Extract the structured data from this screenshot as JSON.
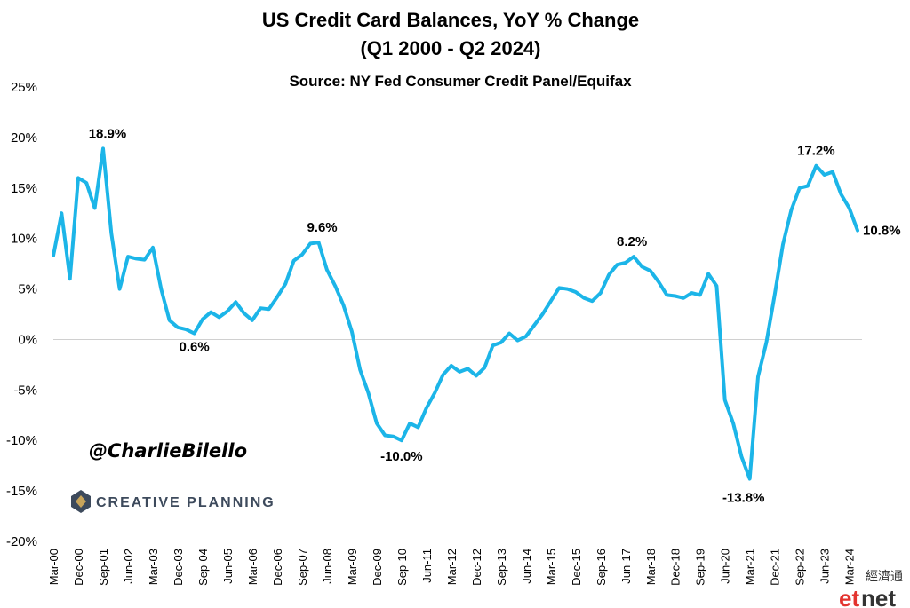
{
  "chart_data": {
    "type": "line",
    "title_line1": "US Credit Card Balances, YoY % Change",
    "title_line2": "(Q1 2000 - Q2 2024)",
    "subtitle": "Source: NY Fed Consumer Credit Panel/Equifax",
    "ylim": [
      -20,
      25
    ],
    "yticks": [
      -20,
      -15,
      -10,
      -5,
      0,
      5,
      10,
      15,
      20,
      25
    ],
    "ytick_labels": [
      "-20%",
      "-15%",
      "-10%",
      "-5%",
      "0%",
      "5%",
      "10%",
      "15%",
      "20%",
      "25%"
    ],
    "xtick_labels": [
      "Mar-00",
      "Dec-00",
      "Sep-01",
      "Jun-02",
      "Mar-03",
      "Dec-03",
      "Sep-04",
      "Jun-05",
      "Mar-06",
      "Dec-06",
      "Sep-07",
      "Jun-08",
      "Mar-09",
      "Dec-09",
      "Sep-10",
      "Jun-11",
      "Mar-12",
      "Dec-12",
      "Sep-13",
      "Jun-14",
      "Mar-15",
      "Dec-15",
      "Sep-16",
      "Jun-17",
      "Mar-18",
      "Dec-18",
      "Sep-19",
      "Jun-20",
      "Mar-21",
      "Dec-21",
      "Sep-22",
      "Jun-23",
      "Mar-24"
    ],
    "grid": false,
    "line_color": "#1cb5e8",
    "series": [
      {
        "values": [
          8.3,
          12.5,
          6.0,
          16.0,
          15.5,
          13.0,
          18.9,
          10.5,
          5.0,
          8.2,
          8.0,
          7.9,
          9.1,
          5.0,
          1.9,
          1.2,
          1.0,
          0.6,
          2.0,
          2.7,
          2.2,
          2.8,
          3.7,
          2.6,
          1.9,
          3.1,
          3.0,
          4.2,
          5.5,
          7.8,
          8.4,
          9.5,
          9.6,
          6.9,
          5.3,
          3.4,
          0.8,
          -3.0,
          -5.3,
          -8.3,
          -9.5,
          -9.6,
          -10.0,
          -8.3,
          -8.7,
          -6.8,
          -5.3,
          -3.5,
          -2.6,
          -3.2,
          -2.9,
          -3.6,
          -2.8,
          -0.6,
          -0.3,
          0.6,
          -0.1,
          0.3,
          1.4,
          2.5,
          3.8,
          5.1,
          5.0,
          4.7,
          4.1,
          3.8,
          4.6,
          6.4,
          7.4,
          7.6,
          8.2,
          7.2,
          6.8,
          5.7,
          4.4,
          4.3,
          4.1,
          4.6,
          4.4,
          6.5,
          5.3,
          -6.0,
          -8.3,
          -11.6,
          -13.8,
          -3.7,
          -0.3,
          4.4,
          9.4,
          12.8,
          15.0,
          15.2,
          17.2,
          16.3,
          16.6,
          14.4,
          13.0,
          10.8
        ]
      }
    ],
    "annotations": [
      "18.9%",
      "0.6%",
      "9.6%",
      "-10.0%",
      "8.2%",
      "-13.8%",
      "17.2%",
      "10.8%"
    ]
  },
  "handle": "@CharlieBilello",
  "logo": {
    "text": "CREATIVE PLANNING",
    "color": "#3d4a5c",
    "accent": "#c8a45a"
  },
  "watermark": {
    "et": "et",
    "net": "net",
    "cn": "經濟通",
    "et_color": "#e3342f",
    "net_color": "#333333"
  }
}
